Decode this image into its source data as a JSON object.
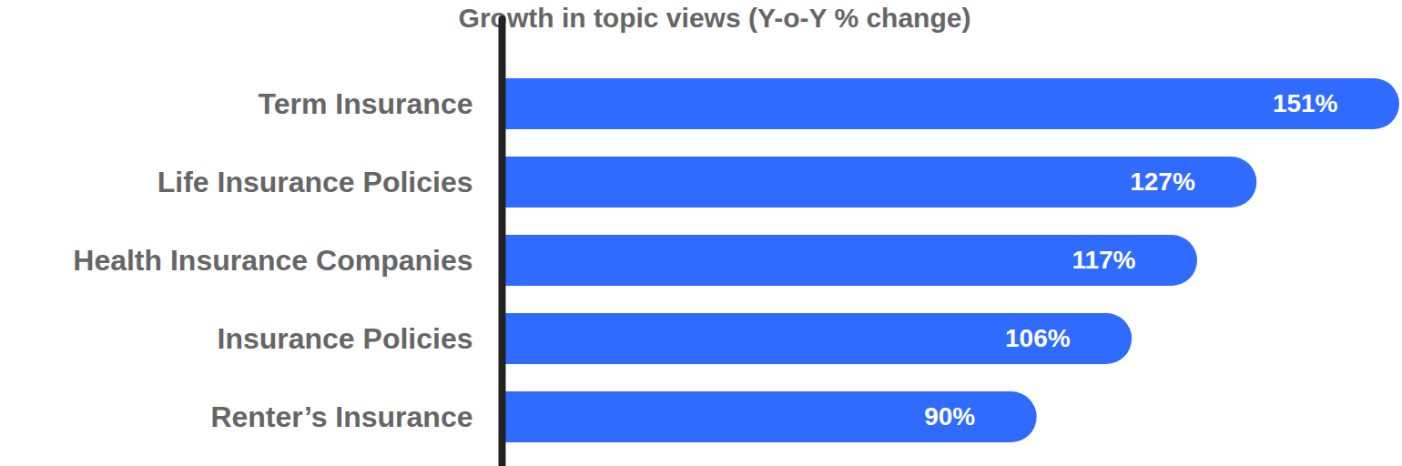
{
  "chart_data": {
    "type": "bar",
    "title": "Growth in topic views (Y-o-Y % change)",
    "orientation": "horizontal",
    "categories": [
      "Term Insurance",
      "Life Insurance Policies",
      "Health Insurance Companies",
      "Insurance Policies",
      "Renter’s Insurance"
    ],
    "values": [
      151,
      127,
      117,
      106,
      90
    ],
    "value_labels": [
      "151%",
      "127%",
      "117%",
      "106%",
      "90%"
    ],
    "color": "#2f6bff",
    "xlim": [
      0,
      151
    ],
    "data_labels": true,
    "tick_labels": "y",
    "grid": false
  }
}
